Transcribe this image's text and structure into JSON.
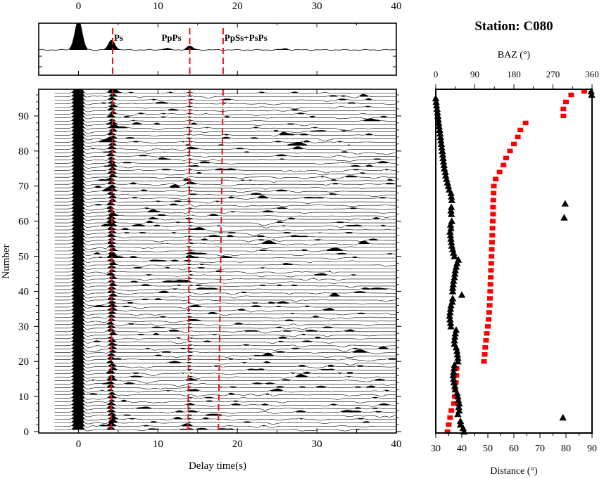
{
  "chart_data": [
    {
      "type": "line",
      "panel": "stacked-receiver-function",
      "xaxis": {
        "label": "Delay time(s)",
        "range": [
          -5,
          40
        ],
        "ticks": [
          0,
          10,
          20,
          30,
          40
        ],
        "tick_labels": [
          "0",
          "10",
          "20",
          "30",
          "40"
        ]
      },
      "yaxis": {
        "label": "Number",
        "range": [
          0,
          97
        ],
        "ticks": [
          0,
          10,
          20,
          30,
          40,
          50,
          60,
          70,
          80,
          90
        ],
        "tick_labels": [
          "0",
          "10",
          "20",
          "30",
          "40",
          "50",
          "60",
          "70",
          "80",
          "90"
        ]
      },
      "phases": [
        {
          "name": "Ps",
          "time_top": 4.3,
          "time_bottom": 4.1
        },
        {
          "name": "PpPs",
          "time_top": 14.0,
          "time_bottom": 13.8
        },
        {
          "name": "PpSs+PsPs",
          "time_top": 18.2,
          "time_bottom": 17.6
        }
      ],
      "stack_peaks": [
        {
          "time": 0.0,
          "amplitude": 1.0
        },
        {
          "time": 4.2,
          "amplitude": 0.33
        },
        {
          "time": 11.0,
          "amplitude": 0.05
        },
        {
          "time": 14.0,
          "amplitude": 0.12
        },
        {
          "time": 26.0,
          "amplitude": 0.04
        }
      ],
      "trace_count": 97
    },
    {
      "type": "scatter",
      "panel": "station-baz-distance",
      "title": "Station: C080",
      "top_axis": {
        "label": "BAZ (°)",
        "range": [
          0,
          360
        ],
        "ticks": [
          0,
          90,
          180,
          270,
          360
        ],
        "tick_labels": [
          "0",
          "90",
          "180",
          "270",
          "360"
        ]
      },
      "bottom_axis": {
        "label": "Distance (°)",
        "range": [
          30,
          90
        ],
        "ticks": [
          30,
          40,
          50,
          60,
          70,
          80,
          90
        ],
        "tick_labels": [
          "30",
          "40",
          "50",
          "60",
          "70",
          "80",
          "90"
        ]
      },
      "distance_series": {
        "name": "Distance",
        "color": "#ff0000",
        "points": [
          [
            0,
            34.5
          ],
          [
            2,
            35
          ],
          [
            4,
            35.5
          ],
          [
            6,
            36
          ],
          [
            8,
            37
          ],
          [
            10,
            37.3
          ],
          [
            12,
            37.5
          ],
          [
            14,
            37.7
          ],
          [
            16,
            37.9
          ],
          [
            18,
            38
          ],
          [
            20,
            48.5
          ],
          [
            22,
            48.8
          ],
          [
            24,
            49
          ],
          [
            26,
            49.3
          ],
          [
            28,
            49.6
          ],
          [
            30,
            50
          ],
          [
            32,
            50.3
          ],
          [
            34,
            50.5
          ],
          [
            36,
            50.7
          ],
          [
            38,
            50.8
          ],
          [
            40,
            50.9
          ],
          [
            42,
            51
          ],
          [
            44,
            51.1
          ],
          [
            46,
            51.2
          ],
          [
            48,
            51.3
          ],
          [
            50,
            51.4
          ],
          [
            52,
            51.5
          ],
          [
            54,
            51.6
          ],
          [
            56,
            51.7
          ],
          [
            58,
            51.8
          ],
          [
            60,
            51.9
          ],
          [
            62,
            52
          ],
          [
            64,
            52
          ],
          [
            66,
            52.1
          ],
          [
            68,
            52.2
          ],
          [
            70,
            52.3
          ],
          [
            72,
            53
          ],
          [
            74,
            54.5
          ],
          [
            76,
            56
          ],
          [
            78,
            57
          ],
          [
            80,
            58.5
          ],
          [
            82,
            60
          ],
          [
            84,
            61.5
          ],
          [
            86,
            62.5
          ],
          [
            88,
            64.5
          ],
          [
            90,
            79
          ],
          [
            92,
            79
          ],
          [
            94,
            80
          ],
          [
            96,
            82
          ],
          [
            97,
            87
          ]
        ]
      },
      "baz_series": {
        "name": "BAZ",
        "color": "#000000",
        "points": [
          [
            0,
            65
          ],
          [
            1,
            63
          ],
          [
            2,
            57
          ],
          [
            3,
            57
          ],
          [
            4,
            293
          ],
          [
            5,
            51
          ],
          [
            6,
            54
          ],
          [
            7,
            53
          ],
          [
            8,
            54
          ],
          [
            9,
            52
          ],
          [
            10,
            51
          ],
          [
            11,
            49
          ],
          [
            12,
            45
          ],
          [
            13,
            44
          ],
          [
            14,
            42
          ],
          [
            15,
            41
          ],
          [
            16,
            40
          ],
          [
            17,
            41
          ],
          [
            18,
            42
          ],
          [
            19,
            43
          ],
          [
            20,
            51
          ],
          [
            21,
            51
          ],
          [
            22,
            50
          ],
          [
            23,
            49
          ],
          [
            24,
            47
          ],
          [
            25,
            43
          ],
          [
            26,
            43
          ],
          [
            27,
            44
          ],
          [
            28,
            45
          ],
          [
            29,
            47
          ],
          [
            30,
            35
          ],
          [
            31,
            34
          ],
          [
            32,
            33
          ],
          [
            33,
            32
          ],
          [
            34,
            33
          ],
          [
            35,
            34
          ],
          [
            36,
            35
          ],
          [
            37,
            38
          ],
          [
            38,
            39
          ],
          [
            39,
            60
          ],
          [
            40,
            39
          ],
          [
            41,
            39
          ],
          [
            42,
            40
          ],
          [
            43,
            41
          ],
          [
            44,
            43
          ],
          [
            45,
            44
          ],
          [
            46,
            45
          ],
          [
            47,
            47
          ],
          [
            48,
            49
          ],
          [
            49,
            52
          ],
          [
            50,
            43
          ],
          [
            51,
            41
          ],
          [
            52,
            39
          ],
          [
            53,
            37
          ],
          [
            54,
            36
          ],
          [
            55,
            35
          ],
          [
            56,
            34
          ],
          [
            57,
            33
          ],
          [
            58,
            35
          ],
          [
            59,
            34
          ],
          [
            60,
            37
          ],
          [
            61,
            296
          ],
          [
            62,
            36
          ],
          [
            63,
            35
          ],
          [
            64,
            36
          ],
          [
            65,
            298
          ],
          [
            66,
            37
          ],
          [
            67,
            36
          ],
          [
            68,
            35
          ],
          [
            69,
            31
          ],
          [
            70,
            29
          ],
          [
            71,
            27
          ],
          [
            72,
            25
          ],
          [
            73,
            23
          ],
          [
            74,
            22
          ],
          [
            75,
            20
          ],
          [
            76,
            19
          ],
          [
            77,
            18
          ],
          [
            78,
            17
          ],
          [
            79,
            16
          ],
          [
            80,
            15
          ],
          [
            81,
            14
          ],
          [
            82,
            13
          ],
          [
            83,
            12
          ],
          [
            84,
            11
          ],
          [
            85,
            10
          ],
          [
            86,
            9
          ],
          [
            87,
            8
          ],
          [
            88,
            7
          ],
          [
            89,
            6
          ],
          [
            90,
            5
          ],
          [
            91,
            4
          ],
          [
            92,
            3
          ],
          [
            93,
            2
          ],
          [
            94,
            1
          ],
          [
            95,
            0
          ],
          [
            96,
            359
          ],
          [
            97,
            358
          ]
        ]
      }
    }
  ]
}
